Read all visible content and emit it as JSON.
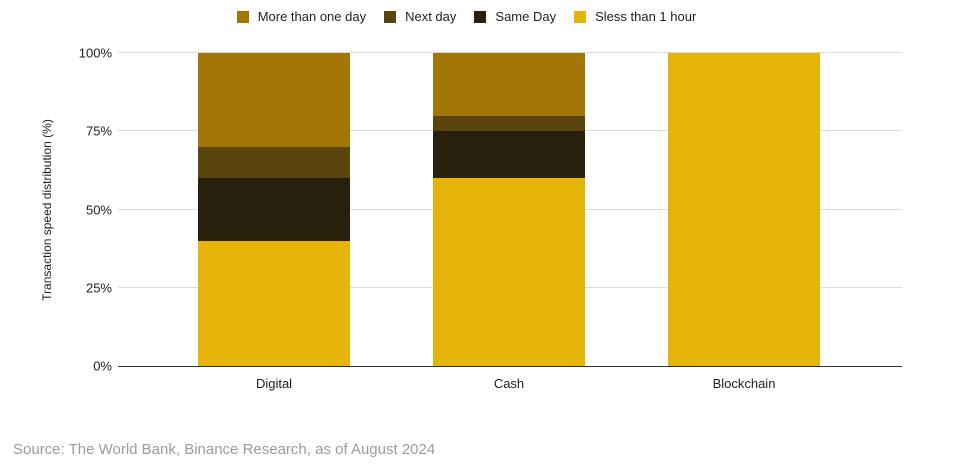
{
  "legend": {
    "items": [
      {
        "label": "More than one day",
        "color": "#A27708"
      },
      {
        "label": "Next day",
        "color": "#5A460D"
      },
      {
        "label": "Same Day",
        "color": "#27200D"
      },
      {
        "label": "Sless than 1 hour",
        "color": "#E6B409"
      }
    ]
  },
  "chart_data": {
    "type": "bar",
    "stacked": true,
    "categories": [
      "Digital",
      "Cash",
      "Blockchain"
    ],
    "series": [
      {
        "name": "Sless than 1 hour",
        "color": "#E6B409",
        "values": [
          40,
          60,
          100
        ]
      },
      {
        "name": "Same Day",
        "color": "#27200D",
        "values": [
          20,
          15,
          0
        ]
      },
      {
        "name": "Next day",
        "color": "#5A460D",
        "values": [
          10,
          5,
          0
        ]
      },
      {
        "name": "More than one day",
        "color": "#A27708",
        "values": [
          30,
          20,
          0
        ]
      }
    ],
    "title": "",
    "xlabel": "",
    "ylabel": "Transaction speed distribution (%)",
    "yticks": [
      "0%",
      "25%",
      "50%",
      "75%",
      "100%"
    ],
    "ylim": [
      0,
      100
    ],
    "grid": true,
    "legend_position": "top",
    "colors": {
      "gridline": "#dcdcdc",
      "baseline": "#333333",
      "text": "#1f1f1f",
      "source_text": "#9b9b9b"
    }
  },
  "source": {
    "text": "Source: The World Bank, Binance Research, as of August 2024"
  }
}
